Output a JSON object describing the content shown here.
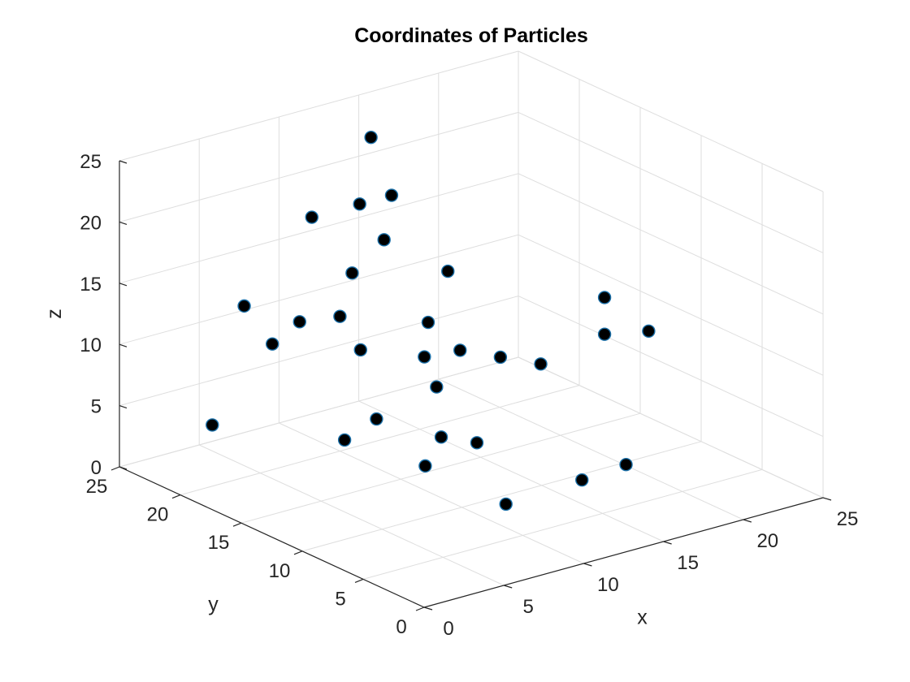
{
  "chart_data": {
    "type": "scatter",
    "projection": "3d",
    "title": "Coordinates of Particles",
    "xlabel": "x",
    "ylabel": "y",
    "zlabel": "z",
    "xlim": [
      0,
      25
    ],
    "ylim": [
      0,
      25
    ],
    "zlim": [
      0,
      25
    ],
    "xticks": [
      "0",
      "5",
      "10",
      "15",
      "20",
      "25"
    ],
    "yticks": [
      "0",
      "5",
      "10",
      "15",
      "20",
      "25"
    ],
    "zticks": [
      "0",
      "5",
      "10",
      "15",
      "20",
      "25"
    ],
    "grid": true,
    "marker_color": "#000000",
    "marker_edge_color": "#1a6fa8",
    "points": [
      {
        "x": 2,
        "y": 20,
        "z": 5
      },
      {
        "x": 9,
        "y": 22,
        "z": 10
      },
      {
        "x": 4,
        "y": 20,
        "z": 14
      },
      {
        "x": 5,
        "y": 19,
        "z": 11
      },
      {
        "x": 9,
        "y": 21,
        "z": 19
      },
      {
        "x": 15,
        "y": 24,
        "z": 22
      },
      {
        "x": 12,
        "y": 21,
        "z": 19
      },
      {
        "x": 9,
        "y": 17,
        "z": 10
      },
      {
        "x": 10,
        "y": 17,
        "z": 4
      },
      {
        "x": 12,
        "y": 19,
        "z": 17
      },
      {
        "x": 14,
        "y": 21,
        "z": 19
      },
      {
        "x": 10,
        "y": 19,
        "z": 15
      },
      {
        "x": 10,
        "y": 20,
        "z": 11
      },
      {
        "x": 8,
        "y": 17,
        "z": 3
      },
      {
        "x": 10,
        "y": 13,
        "z": 2
      },
      {
        "x": 13,
        "y": 17,
        "z": 8
      },
      {
        "x": 16,
        "y": 19,
        "z": 13
      },
      {
        "x": 16,
        "y": 18,
        "z": 7
      },
      {
        "x": 11,
        "y": 13,
        "z": 4
      },
      {
        "x": 14,
        "y": 18,
        "z": 10
      },
      {
        "x": 13,
        "y": 16,
        "z": 6
      },
      {
        "x": 17,
        "y": 16,
        "z": 7
      },
      {
        "x": 18,
        "y": 14,
        "z": 7
      },
      {
        "x": 14,
        "y": 14,
        "z": 2
      },
      {
        "x": 22,
        "y": 14,
        "z": 11
      },
      {
        "x": 22,
        "y": 14,
        "z": 8
      },
      {
        "x": 24,
        "y": 13,
        "z": 8
      },
      {
        "x": 12,
        "y": 9,
        "z": 0
      },
      {
        "x": 16,
        "y": 8,
        "z": 1
      },
      {
        "x": 18,
        "y": 7,
        "z": 2
      }
    ]
  }
}
